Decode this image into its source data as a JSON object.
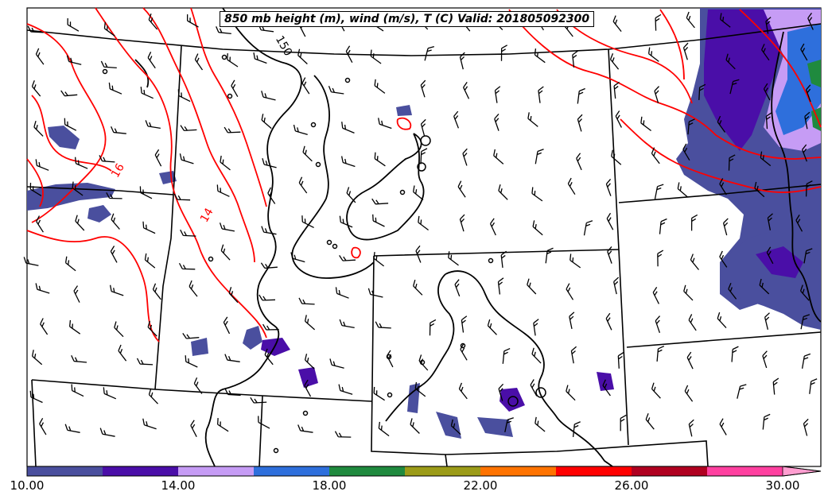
{
  "title": "850 mb height (m), wind (m/s), T (C) Valid: 201805092300",
  "contour_labels": [
    "16",
    "14",
    "150"
  ],
  "colorbar": {
    "tick_labels": [
      "10.00",
      "14.00",
      "18.00",
      "22.00",
      "26.00",
      "30.00"
    ],
    "colors": [
      "#4a4f9e",
      "#4a0ea8",
      "#c69cf5",
      "#2e6fdc",
      "#1f8a3e",
      "#9c9c18",
      "#ff7300",
      "#ff0000",
      "#b00020",
      "#ff40a0",
      "#ff9ed0"
    ]
  },
  "colors": {
    "temperature_contour": "#ff0000",
    "height_contour": "#000000",
    "borders": "#000000",
    "shade_main": "#4a4f9e",
    "shade_core": "#4a0ea8"
  }
}
